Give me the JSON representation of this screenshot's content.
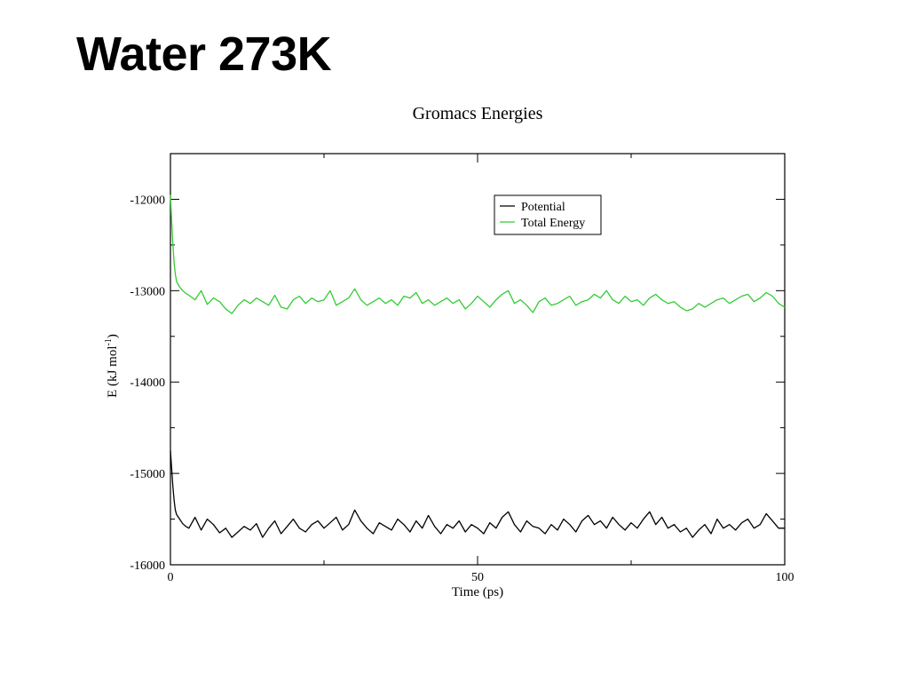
{
  "slide": {
    "title": "Water 273K"
  },
  "colors": {
    "potential": "#000000",
    "total_energy": "#33cc33",
    "axes": "#000000"
  },
  "chart_data": {
    "type": "line",
    "title": "Gromacs Energies",
    "xlabel": "Time (ps)",
    "ylabel_main": "E (kJ mol",
    "ylabel_sup": "-1",
    "ylabel_close": ")",
    "xlim": [
      0,
      100
    ],
    "ylim": [
      -16000,
      -11500
    ],
    "xticks": [
      0,
      50,
      100
    ],
    "xtick_labels": [
      "0",
      "50",
      "100"
    ],
    "yticks": [
      -16000,
      -15000,
      -14000,
      -13000,
      -12000
    ],
    "ytick_labels": [
      "-16000",
      "-15000",
      "-14000",
      "-13000",
      "-12000"
    ],
    "legend_position": "top-right",
    "series": [
      {
        "name": "Potential",
        "color": "#000000",
        "x": [
          0,
          0.2,
          0.4,
          0.6,
          0.8,
          1,
          1.5,
          2,
          2.5,
          3,
          4,
          5,
          6,
          7,
          8,
          9,
          10,
          11,
          12,
          13,
          14,
          15,
          16,
          17,
          18,
          19,
          20,
          21,
          22,
          23,
          24,
          25,
          26,
          27,
          28,
          29,
          30,
          31,
          32,
          33,
          34,
          35,
          36,
          37,
          38,
          39,
          40,
          41,
          42,
          43,
          44,
          45,
          46,
          47,
          48,
          49,
          50,
          51,
          52,
          53,
          54,
          55,
          56,
          57,
          58,
          59,
          60,
          61,
          62,
          63,
          64,
          65,
          66,
          67,
          68,
          69,
          70,
          71,
          72,
          73,
          74,
          75,
          76,
          77,
          78,
          79,
          80,
          81,
          82,
          83,
          84,
          85,
          86,
          87,
          88,
          89,
          90,
          91,
          92,
          93,
          94,
          95,
          96,
          97,
          98,
          99,
          100
        ],
        "y": [
          -14750,
          -14950,
          -15150,
          -15300,
          -15400,
          -15450,
          -15500,
          -15550,
          -15580,
          -15600,
          -15480,
          -15620,
          -15500,
          -15560,
          -15650,
          -15600,
          -15700,
          -15640,
          -15580,
          -15620,
          -15550,
          -15700,
          -15600,
          -15520,
          -15660,
          -15580,
          -15500,
          -15600,
          -15640,
          -15560,
          -15520,
          -15600,
          -15540,
          -15480,
          -15620,
          -15560,
          -15400,
          -15520,
          -15600,
          -15660,
          -15540,
          -15580,
          -15620,
          -15500,
          -15560,
          -15640,
          -15520,
          -15600,
          -15460,
          -15580,
          -15660,
          -15560,
          -15600,
          -15520,
          -15640,
          -15560,
          -15600,
          -15660,
          -15540,
          -15600,
          -15480,
          -15420,
          -15560,
          -15640,
          -15520,
          -15580,
          -15600,
          -15660,
          -15560,
          -15620,
          -15500,
          -15560,
          -15640,
          -15520,
          -15460,
          -15560,
          -15520,
          -15600,
          -15480,
          -15560,
          -15620,
          -15540,
          -15600,
          -15500,
          -15420,
          -15560,
          -15480,
          -15600,
          -15560,
          -15640,
          -15600,
          -15700,
          -15620,
          -15560,
          -15660,
          -15500,
          -15600,
          -15560,
          -15620,
          -15540,
          -15500,
          -15600,
          -15560,
          -15440,
          -15520,
          -15600,
          -15600
        ]
      },
      {
        "name": "Total Energy",
        "color": "#33cc33",
        "x": [
          0,
          0.2,
          0.4,
          0.6,
          0.8,
          1,
          1.5,
          2,
          2.5,
          3,
          4,
          5,
          6,
          7,
          8,
          9,
          10,
          11,
          12,
          13,
          14,
          15,
          16,
          17,
          18,
          19,
          20,
          21,
          22,
          23,
          24,
          25,
          26,
          27,
          28,
          29,
          30,
          31,
          32,
          33,
          34,
          35,
          36,
          37,
          38,
          39,
          40,
          41,
          42,
          43,
          44,
          45,
          46,
          47,
          48,
          49,
          50,
          51,
          52,
          53,
          54,
          55,
          56,
          57,
          58,
          59,
          60,
          61,
          62,
          63,
          64,
          65,
          66,
          67,
          68,
          69,
          70,
          71,
          72,
          73,
          74,
          75,
          76,
          77,
          78,
          79,
          80,
          81,
          82,
          83,
          84,
          85,
          86,
          87,
          88,
          89,
          90,
          91,
          92,
          93,
          94,
          95,
          96,
          97,
          98,
          99,
          100
        ],
        "y": [
          -11950,
          -12250,
          -12500,
          -12700,
          -12820,
          -12900,
          -12960,
          -13000,
          -13030,
          -13050,
          -13100,
          -13000,
          -13150,
          -13080,
          -13120,
          -13200,
          -13250,
          -13160,
          -13100,
          -13140,
          -13080,
          -13120,
          -13160,
          -13050,
          -13180,
          -13200,
          -13100,
          -13060,
          -13140,
          -13080,
          -13120,
          -13100,
          -13000,
          -13160,
          -13120,
          -13080,
          -12980,
          -13100,
          -13160,
          -13120,
          -13080,
          -13140,
          -13100,
          -13160,
          -13060,
          -13080,
          -13020,
          -13140,
          -13100,
          -13160,
          -13120,
          -13080,
          -13140,
          -13100,
          -13200,
          -13140,
          -13060,
          -13120,
          -13180,
          -13100,
          -13040,
          -13000,
          -13140,
          -13100,
          -13160,
          -13240,
          -13120,
          -13080,
          -13160,
          -13140,
          -13100,
          -13060,
          -13160,
          -13120,
          -13100,
          -13040,
          -13080,
          -13000,
          -13100,
          -13140,
          -13060,
          -13120,
          -13100,
          -13160,
          -13080,
          -13040,
          -13100,
          -13140,
          -13120,
          -13180,
          -13220,
          -13200,
          -13140,
          -13180,
          -13140,
          -13100,
          -13080,
          -13140,
          -13100,
          -13060,
          -13040,
          -13120,
          -13080,
          -13020,
          -13060,
          -13140,
          -13180
        ]
      }
    ]
  }
}
